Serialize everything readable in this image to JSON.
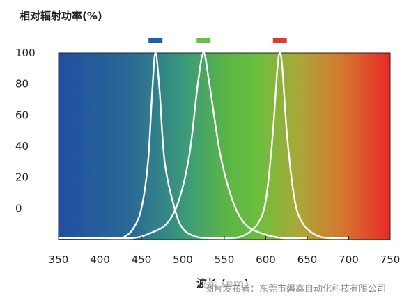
{
  "chart_data": {
    "type": "line",
    "title": "",
    "ylabel": "相对辐射功率(%)",
    "xlabel": "波长 (nm)",
    "xlim": [
      350,
      750
    ],
    "ylim": [
      -20,
      100
    ],
    "xticks": [
      350,
      400,
      450,
      500,
      550,
      600,
      650,
      700,
      750
    ],
    "yticks": [
      100,
      80,
      60,
      40,
      20,
      0
    ],
    "grid": false,
    "legend": "top-center",
    "background": "visible-spectrum gradient (blue to red)",
    "series": [
      {
        "color": "#1f5fa8",
        "points": [
          [
            350,
            -19
          ],
          [
            420,
            -19
          ],
          [
            430,
            -18
          ],
          [
            440,
            -13
          ],
          [
            450,
            0
          ],
          [
            458,
            30
          ],
          [
            463,
            75
          ],
          [
            467,
            100
          ],
          [
            472,
            75
          ],
          [
            478,
            30
          ],
          [
            490,
            0
          ],
          [
            500,
            -13
          ],
          [
            515,
            -18
          ],
          [
            530,
            -19
          ],
          [
            560,
            -19
          ]
        ]
      },
      {
        "color": "#6cbf44",
        "points": [
          [
            400,
            -19
          ],
          [
            440,
            -19
          ],
          [
            460,
            -16
          ],
          [
            480,
            -10
          ],
          [
            495,
            5
          ],
          [
            508,
            35
          ],
          [
            518,
            80
          ],
          [
            525,
            100
          ],
          [
            532,
            80
          ],
          [
            545,
            35
          ],
          [
            560,
            5
          ],
          [
            575,
            -10
          ],
          [
            595,
            -16
          ],
          [
            620,
            -19
          ],
          [
            650,
            -19
          ]
        ]
      },
      {
        "color": "#e23a2e",
        "points": [
          [
            540,
            -19
          ],
          [
            560,
            -19
          ],
          [
            575,
            -17
          ],
          [
            590,
            -10
          ],
          [
            600,
            5
          ],
          [
            608,
            45
          ],
          [
            614,
            90
          ],
          [
            617,
            100
          ],
          [
            620,
            90
          ],
          [
            626,
            45
          ],
          [
            635,
            5
          ],
          [
            645,
            -10
          ],
          [
            660,
            -17
          ],
          [
            675,
            -19
          ],
          [
            700,
            -19
          ]
        ]
      }
    ]
  },
  "watermark": "图片发布者：东莞市磐鑫自动化科技有限公司"
}
